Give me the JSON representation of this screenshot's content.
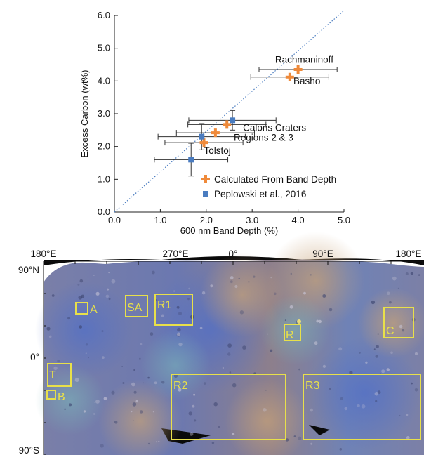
{
  "chart_data": [
    {
      "type": "scatter",
      "xlabel": "600 nm Band Depth (%)",
      "ylabel": "Excess Carbon (wt%)",
      "xlim": [
        0.0,
        5.0
      ],
      "ylim": [
        0.0,
        6.0
      ],
      "xticks": [
        "0.0",
        "1.0",
        "2.0",
        "3.0",
        "4.0",
        "5.0"
      ],
      "yticks": [
        "0.0",
        "1.0",
        "2.0",
        "3.0",
        "4.0",
        "5.0",
        "6.0"
      ],
      "grid": false,
      "legend_position": "lower-right",
      "colors": {
        "calculated": "#ef8a3a",
        "peplowski": "#4a7cc0",
        "fit": "#4a7cc0",
        "error": "#333333"
      },
      "fit_line": {
        "x": [
          0.0,
          5.0
        ],
        "y": [
          0.0,
          6.15
        ],
        "style": "dotted"
      },
      "series": [
        {
          "name": "Calculated From Band Depth",
          "marker": "plus",
          "points": [
            {
              "x": 4.0,
              "y": 4.35,
              "xerr": 0.85
            },
            {
              "x": 3.82,
              "y": 4.12,
              "xerr": 0.85
            },
            {
              "x": 2.45,
              "y": 2.67,
              "xerr": 0.85
            },
            {
              "x": 2.2,
              "y": 2.42,
              "xerr": 0.85
            },
            {
              "x": 1.95,
              "y": 2.12,
              "xerr": 0.85
            }
          ]
        },
        {
          "name": "Peplowski et al., 2016",
          "marker": "square",
          "points": [
            {
              "x": 2.57,
              "y": 2.8,
              "xerr": 0.95,
              "yerr": 0.3
            },
            {
              "x": 1.9,
              "y": 2.3,
              "xerr": 0.95,
              "yerr": 0.4
            },
            {
              "x": 1.67,
              "y": 1.6,
              "xerr": 0.8,
              "yerr": 0.5
            }
          ]
        }
      ],
      "annotations": [
        {
          "text": "Rachmaninoff",
          "x": 3.5,
          "y": 4.55
        },
        {
          "text": "Basho",
          "x": 3.9,
          "y": 3.9
        },
        {
          "text": "Caloris Craters",
          "x": 2.8,
          "y": 2.48
        },
        {
          "text": "Regions 2 & 3",
          "x": 2.6,
          "y": 2.18
        },
        {
          "text": "Tolstoj",
          "x": 1.95,
          "y": 1.78
        }
      ]
    },
    {
      "type": "map",
      "top_labels": [
        "180°E",
        "270°E",
        "0°",
        "90°E",
        "180°E"
      ],
      "side_labels": [
        "90°N",
        "0°",
        "90°S"
      ],
      "regions": [
        {
          "id": "A",
          "label": "A"
        },
        {
          "id": "SA",
          "label": "SA"
        },
        {
          "id": "R1",
          "label": "R1"
        },
        {
          "id": "R",
          "label": "R"
        },
        {
          "id": "C",
          "label": "C"
        },
        {
          "id": "T",
          "label": "T"
        },
        {
          "id": "B",
          "label": "B"
        },
        {
          "id": "R2",
          "label": "R2"
        },
        {
          "id": "R3",
          "label": "R3"
        }
      ],
      "box_color": "#e8e04a"
    }
  ]
}
